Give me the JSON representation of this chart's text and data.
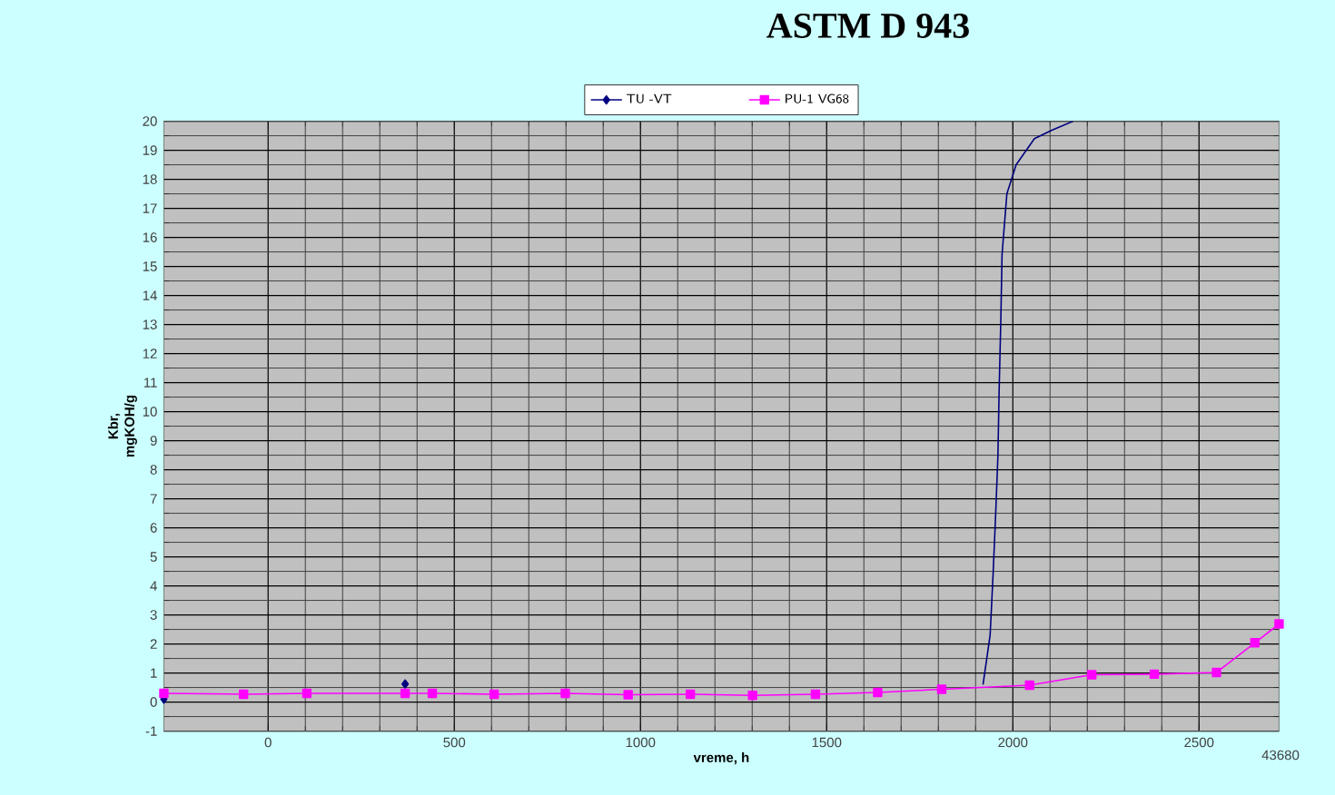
{
  "chart_data": {
    "type": "line",
    "title": "ASTM D 943",
    "xlabel": "vreme, h",
    "ylabel": "Kbr, mgKOH/g",
    "xlim": [
      -280,
      2715
    ],
    "ylim": [
      -1,
      20
    ],
    "xticks": [
      0,
      500,
      1000,
      1500,
      2000,
      2500
    ],
    "yticks": [
      -1,
      0,
      1,
      2,
      3,
      4,
      5,
      6,
      7,
      8,
      9,
      10,
      11,
      12,
      13,
      14,
      15,
      16,
      17,
      18,
      19,
      20
    ],
    "grid": true,
    "legend": "top",
    "line_style": "solid",
    "annotations": [
      "43680"
    ],
    "series": [
      {
        "name": "TU -VT",
        "color": "#000080",
        "marker": "diamond",
        "x": [
          -280,
          -66,
          104,
          368
        ],
        "values": [
          0.1,
          null,
          null,
          0.62
        ]
      },
      {
        "name": "PU-1   VG68",
        "color": "#ff00ff",
        "marker": "square",
        "x": [
          -280,
          -66,
          104,
          368,
          441,
          607,
          798,
          967,
          1134,
          1301,
          1470,
          1637,
          1809,
          2045,
          2212,
          2380,
          2547,
          2650,
          2715
        ],
        "values": [
          0.3,
          0.27,
          0.3,
          0.3,
          0.3,
          0.27,
          0.3,
          0.25,
          0.27,
          0.23,
          0.27,
          0.33,
          0.44,
          0.58,
          0.94,
          0.96,
          1.02,
          2.04,
          2.69
        ]
      },
      {
        "color": "#000080",
        "marker": "none",
        "x": [
          1920,
          1939,
          1947,
          1954,
          1960,
          1963,
          1968,
          1971,
          1984,
          2009,
          2058,
          2106,
          2162
        ],
        "values": [
          0.6,
          2.3,
          4.4,
          6.5,
          8.5,
          10.6,
          13.3,
          15.4,
          17.5,
          18.5,
          19.4,
          19.7,
          20
        ]
      }
    ]
  }
}
